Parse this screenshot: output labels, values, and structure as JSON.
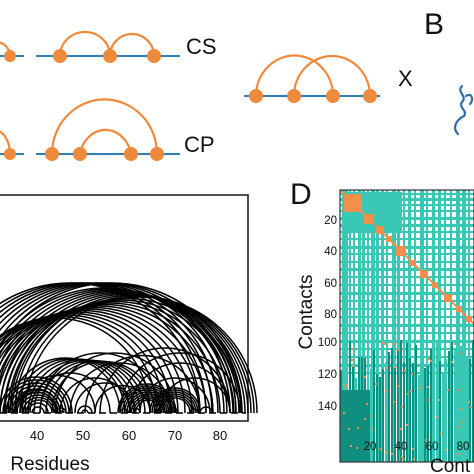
{
  "panels": {
    "cs": {
      "label": "CS"
    },
    "cp": {
      "label": "CP"
    },
    "x": {
      "label": "X"
    },
    "b": {
      "letter": "B"
    },
    "c": {
      "xlabel": "Residues",
      "x_ticks": [
        "40",
        "50",
        "60",
        "70",
        "80"
      ]
    },
    "d": {
      "letter": "D",
      "ylabel": "Contacts",
      "xlabel": "Cont",
      "y_ticks": [
        "20",
        "40",
        "60",
        "80",
        "100",
        "120",
        "140"
      ],
      "x_ticks": [
        "20",
        "40",
        "60",
        "80"
      ]
    }
  },
  "colors": {
    "arc_orange": "#f08a3a",
    "node_orange": "#ee8a3c",
    "line_blue": "#2f7fb5",
    "teal_light": "#39c7b6",
    "teal_dark": "#0f8f80",
    "matrix_orange": "#f0904a",
    "protein_blue": "#2f6fa8"
  }
}
